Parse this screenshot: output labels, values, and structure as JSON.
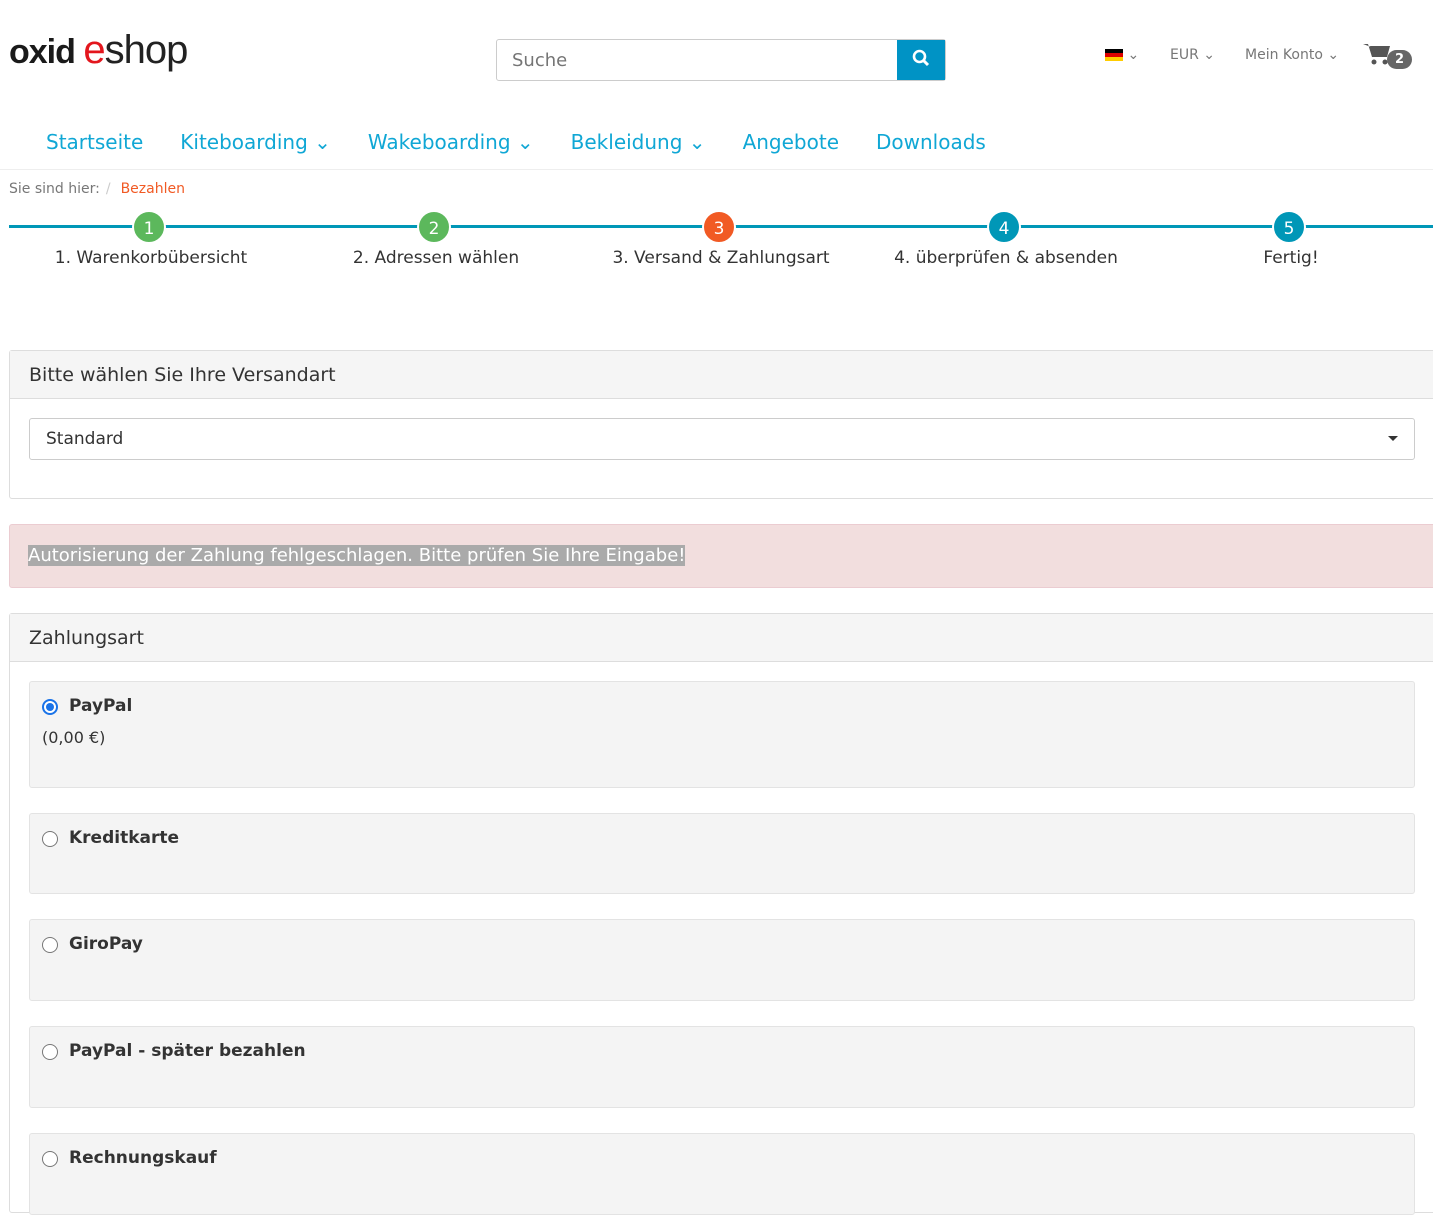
{
  "logo": {
    "part1": "oxid ",
    "part2": "e",
    "part3": "shop"
  },
  "search": {
    "placeholder": "Suche"
  },
  "top": {
    "currency": "EUR",
    "account": "Mein Konto",
    "cart_count": "2"
  },
  "nav": [
    "Startseite",
    "Kiteboarding",
    "Wakeboarding",
    "Bekleidung",
    "Angebote",
    "Downloads"
  ],
  "breadcrumb": {
    "label": "Sie sind hier:",
    "current": "Bezahlen"
  },
  "steps": [
    {
      "num": "1",
      "label": "1. Warenkorbübersicht",
      "color": "#5cb85c"
    },
    {
      "num": "2",
      "label": "2. Adressen wählen",
      "color": "#5cb85c"
    },
    {
      "num": "3",
      "label": "3. Versand & Zahlungsart",
      "color": "#f15a24"
    },
    {
      "num": "4",
      "label": "4. überprüfen & absenden",
      "color": "#0097b7"
    },
    {
      "num": "5",
      "label": "Fertig!",
      "color": "#0097b7"
    }
  ],
  "shipping": {
    "title": "Bitte wählen Sie Ihre Versandart",
    "selected": "Standard"
  },
  "alert": "Autorisierung der Zahlung fehlgeschlagen. Bitte prüfen Sie Ihre Eingabe!",
  "payment": {
    "title": "Zahlungsart",
    "options": [
      {
        "label": "PayPal",
        "price": "(0,00 €)",
        "selected": true
      },
      {
        "label": "Kreditkarte"
      },
      {
        "label": "GiroPay"
      },
      {
        "label": "PayPal - später bezahlen"
      },
      {
        "label": "Rechnungskauf"
      }
    ]
  }
}
